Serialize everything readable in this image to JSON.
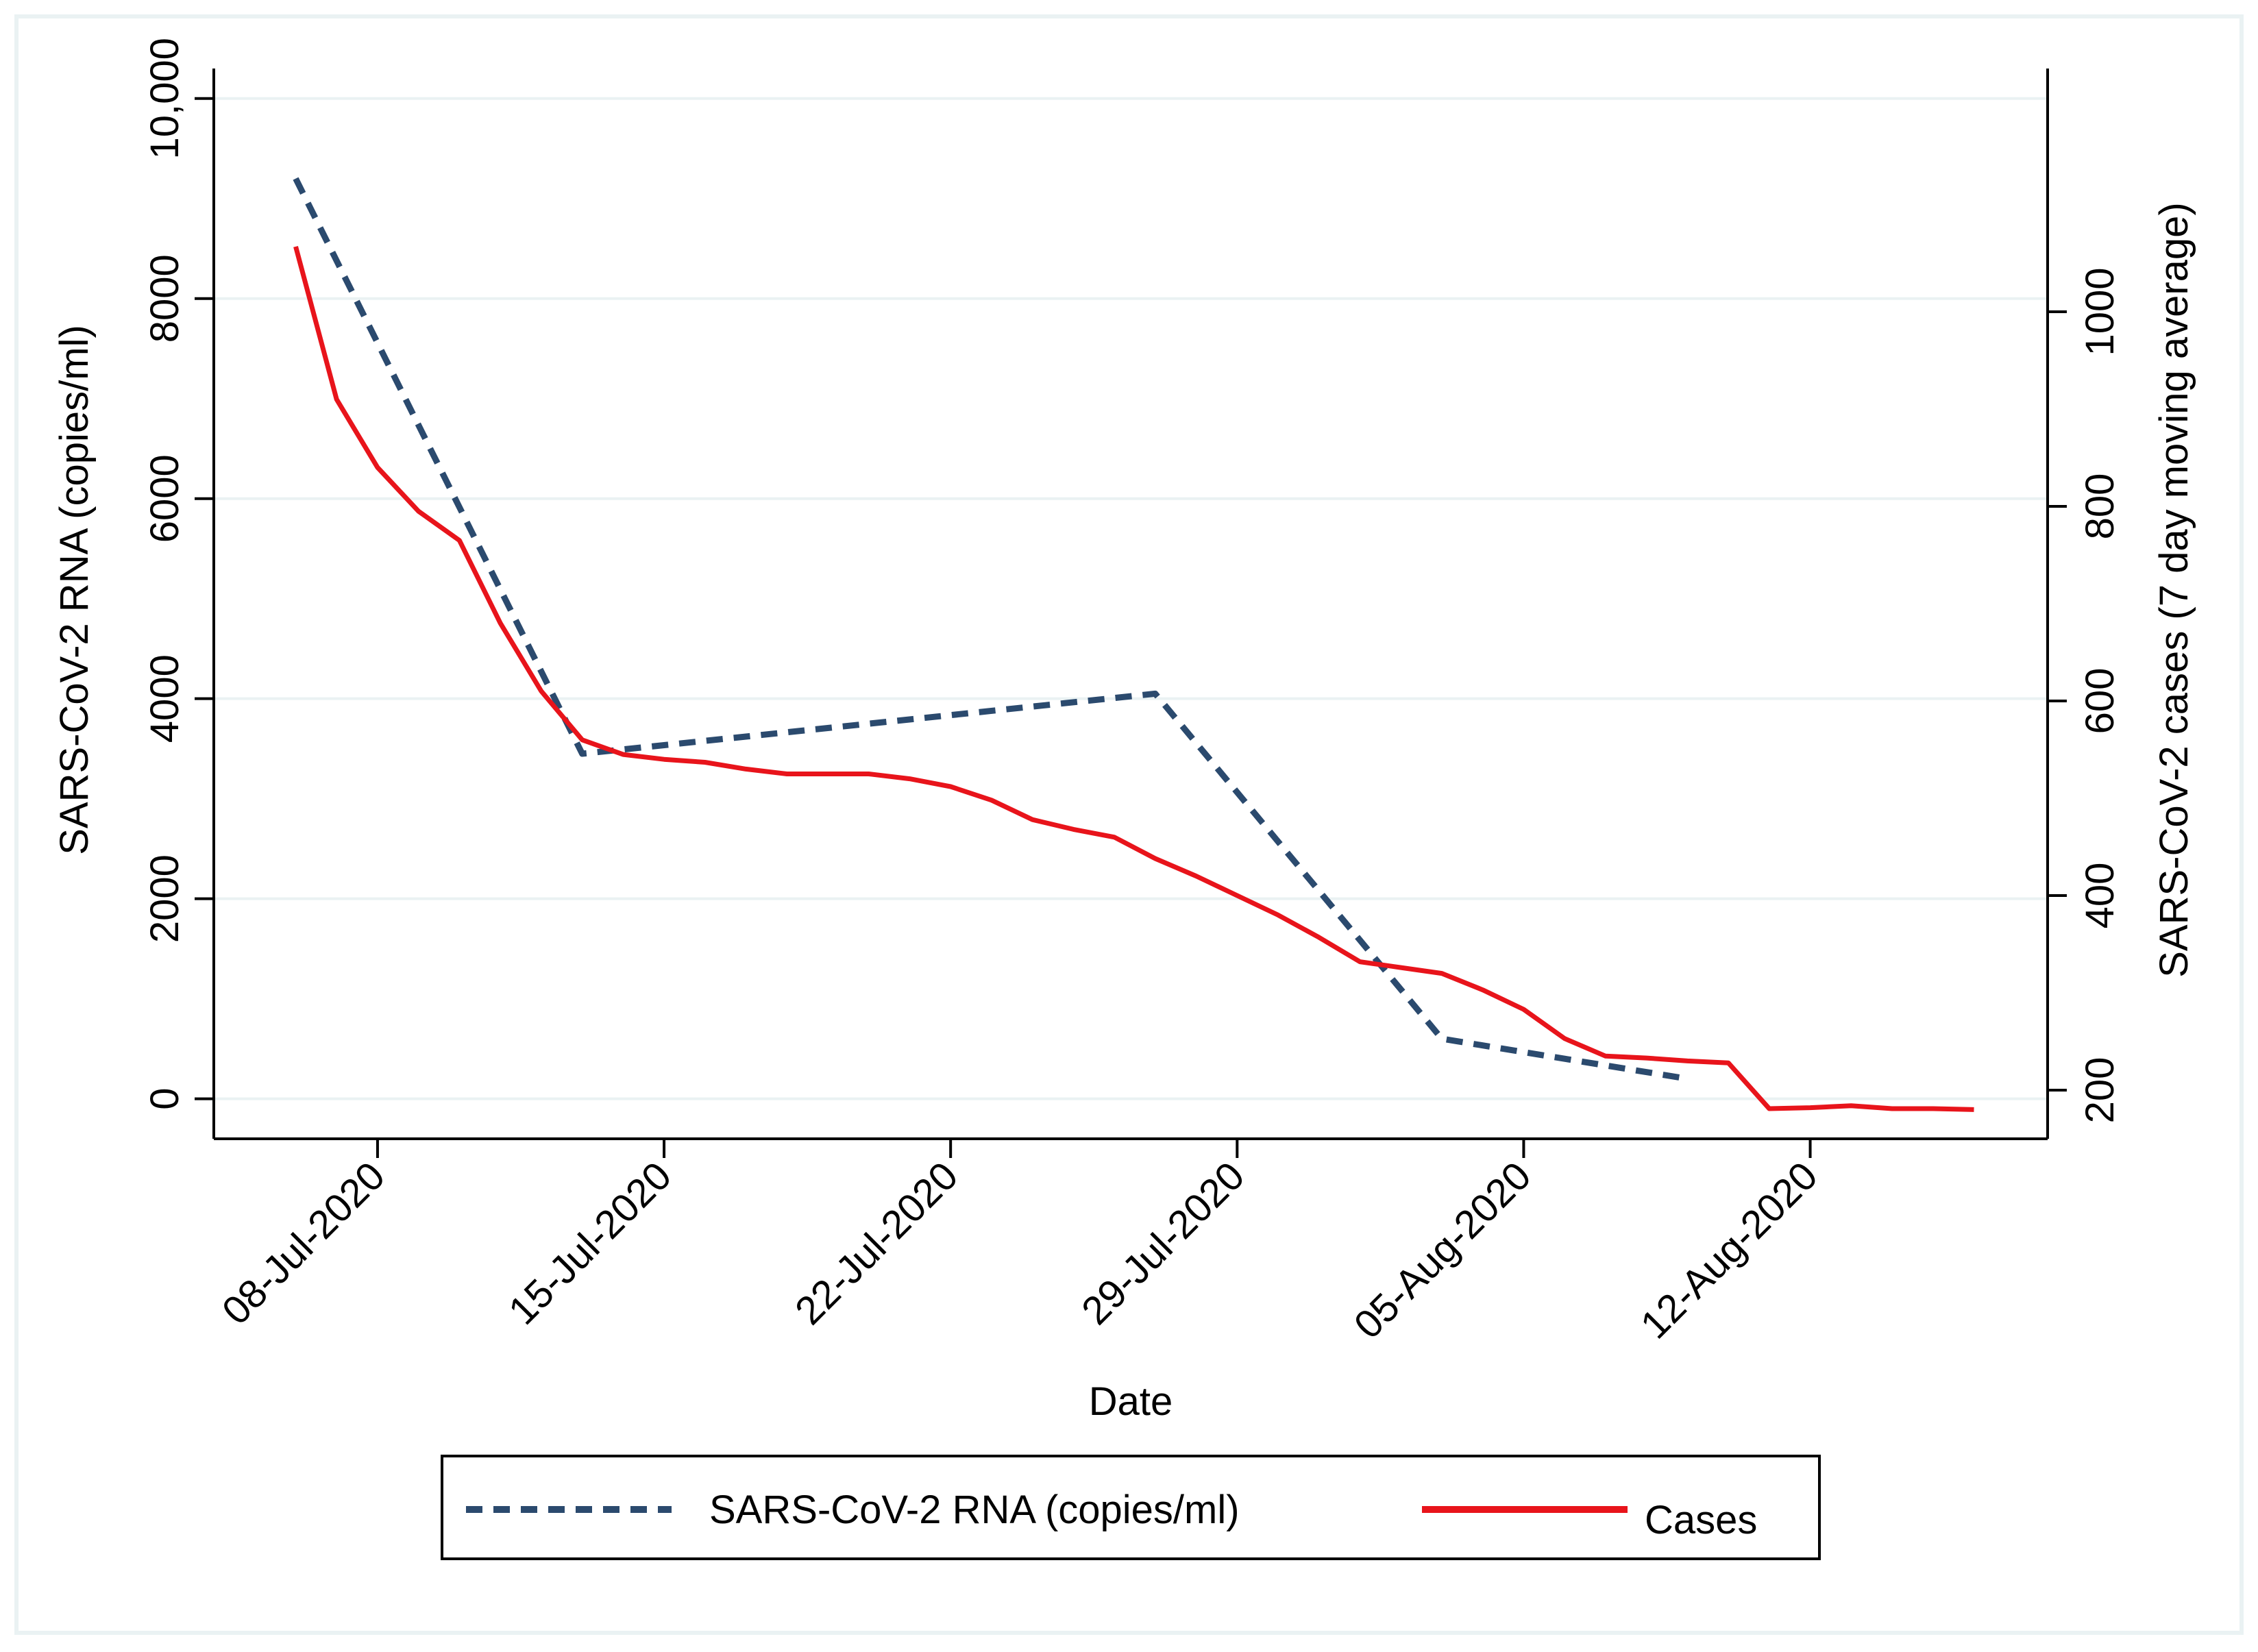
{
  "chart_data": {
    "type": "line",
    "title": "",
    "xlabel": "Date",
    "ylabel_left": "SARS-CoV-2 RNA (copies/ml)",
    "ylabel_right": "SARS-CoV-2 cases (7 day moving average)",
    "x_unit": "days since 08-Jul-2020",
    "xlim": [
      -4.0,
      40.8
    ],
    "ylim_left": [
      -400,
      10300
    ],
    "ylim_right": [
      150,
      1250
    ],
    "x_ticks": [
      {
        "value": 0,
        "label": "08-Jul-2020"
      },
      {
        "value": 7,
        "label": "15-Jul-2020"
      },
      {
        "value": 14,
        "label": "22-Jul-2020"
      },
      {
        "value": 21,
        "label": "29-Jul-2020"
      },
      {
        "value": 28,
        "label": "05-Aug-2020"
      },
      {
        "value": 35,
        "label": "12-Aug-2020"
      }
    ],
    "y_left_ticks": [
      {
        "value": 0,
        "label": "0"
      },
      {
        "value": 2000,
        "label": "2000"
      },
      {
        "value": 4000,
        "label": "4000"
      },
      {
        "value": 6000,
        "label": "6000"
      },
      {
        "value": 8000,
        "label": "8000"
      },
      {
        "value": 10000,
        "label": "10,000"
      }
    ],
    "y_right_ticks": [
      {
        "value": 200,
        "label": "200"
      },
      {
        "value": 400,
        "label": "400"
      },
      {
        "value": 600,
        "label": "600"
      },
      {
        "value": 800,
        "label": "800"
      },
      {
        "value": 1000,
        "label": "1000"
      }
    ],
    "series": [
      {
        "name": "SARS-CoV-2 RNA (copies/ml)",
        "axis": "left",
        "style": "dashed",
        "color": "#2b4a6e",
        "x": [
          -2,
          5,
          19,
          26,
          32
        ],
        "values": [
          9200,
          3450,
          4050,
          600,
          200
        ]
      },
      {
        "name": "Cases",
        "axis": "right",
        "style": "solid",
        "color": "#e8141b",
        "x": [
          -2,
          -1,
          0,
          1,
          2,
          3,
          4,
          5,
          6,
          7,
          8,
          9,
          10,
          11,
          12,
          13,
          14,
          15,
          16,
          17,
          18,
          19,
          20,
          21,
          22,
          23,
          24,
          25,
          26,
          27,
          28,
          29,
          30,
          31,
          32,
          33,
          34,
          35,
          36,
          37,
          38,
          39
        ],
        "values": [
          1067,
          910,
          840,
          795,
          765,
          680,
          610,
          560,
          545,
          540,
          537,
          530,
          525,
          525,
          525,
          520,
          512,
          498,
          478,
          468,
          460,
          438,
          420,
          400,
          380,
          357,
          332,
          326,
          320,
          303,
          283,
          253,
          235,
          233,
          230,
          228,
          181,
          182,
          184,
          181,
          181,
          180
        ]
      }
    ],
    "legend": {
      "placement": "bottom-center",
      "entries": [
        "SARS-CoV-2 RNA (copies/ml)",
        "Cases"
      ]
    }
  }
}
